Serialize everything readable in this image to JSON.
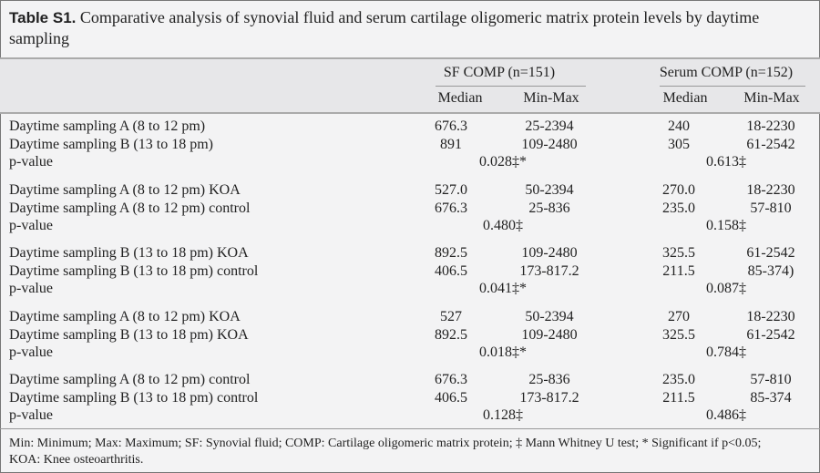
{
  "title": {
    "label": "Table S1.",
    "text": "Comparative analysis of synovial fluid and serum cartilage oligomeric matrix protein levels by daytime sampling"
  },
  "header": {
    "groups": [
      "SF COMP (n=151)",
      "Serum COMP (n=152)"
    ],
    "subcols": [
      "Median",
      "Min-Max",
      "Median",
      "Min-Max"
    ]
  },
  "groups": [
    {
      "rows": [
        {
          "label": "Daytime sampling A (8 to 12 pm)",
          "sf_median": "676.3",
          "sf_range": "25-2394",
          "se_median": "240",
          "se_range": "18-2230"
        },
        {
          "label": "Daytime sampling B (13 to 18 pm)",
          "sf_median": "891",
          "sf_range": "109-2480",
          "se_median": "305",
          "se_range": "61-2542"
        }
      ],
      "p_label": "p-value",
      "sf_p": "0.028‡*",
      "se_p": "0.613‡"
    },
    {
      "rows": [
        {
          "label": "Daytime sampling A (8 to 12 pm) KOA",
          "sf_median": "527.0",
          "sf_range": "50-2394",
          "se_median": "270.0",
          "se_range": "18-2230"
        },
        {
          "label": "Daytime sampling A (8 to 12 pm) control",
          "sf_median": "676.3",
          "sf_range": "25-836",
          "se_median": "235.0",
          "se_range": "57-810"
        }
      ],
      "p_label": "p-value",
      "sf_p": "0.480‡",
      "se_p": "0.158‡"
    },
    {
      "rows": [
        {
          "label": "Daytime sampling B (13 to 18 pm) KOA",
          "sf_median": "892.5",
          "sf_range": "109-2480",
          "se_median": "325.5",
          "se_range": "61-2542"
        },
        {
          "label": "Daytime sampling B (13 to 18 pm) control",
          "sf_median": "406.5",
          "sf_range": "173-817.2",
          "se_median": "211.5",
          "se_range": "85-374)"
        }
      ],
      "p_label": "p-value",
      "sf_p": "0.041‡*",
      "se_p": "0.087‡"
    },
    {
      "rows": [
        {
          "label": "Daytime sampling A (8 to 12 pm) KOA",
          "sf_median": "527",
          "sf_range": "50-2394",
          "se_median": "270",
          "se_range": "18-2230"
        },
        {
          "label": "Daytime sampling B (13 to 18 pm) KOA",
          "sf_median": "892.5",
          "sf_range": "109-2480",
          "se_median": "325.5",
          "se_range": "61-2542"
        }
      ],
      "p_label": "p-value",
      "sf_p": "0.018‡*",
      "se_p": "0.784‡"
    },
    {
      "rows": [
        {
          "label": "Daytime sampling A (8 to 12 pm) control",
          "sf_median": "676.3",
          "sf_range": "25-836",
          "se_median": "235.0",
          "se_range": "57-810"
        },
        {
          "label": "Daytime sampling B (13 to 18 pm) control",
          "sf_median": "406.5",
          "sf_range": "173-817.2",
          "se_median": "211.5",
          "se_range": "85-374"
        }
      ],
      "p_label": "p-value",
      "sf_p": "0.128‡",
      "se_p": "0.486‡"
    }
  ],
  "footnote": {
    "line1": "Min: Minimum; Max: Maximum; SF: Synovial fluid; COMP: Cartilage oligomeric matrix protein; ‡ Mann Whitney U test; * Significant if p<0.05;",
    "line2": "KOA: Knee osteoarthritis."
  }
}
